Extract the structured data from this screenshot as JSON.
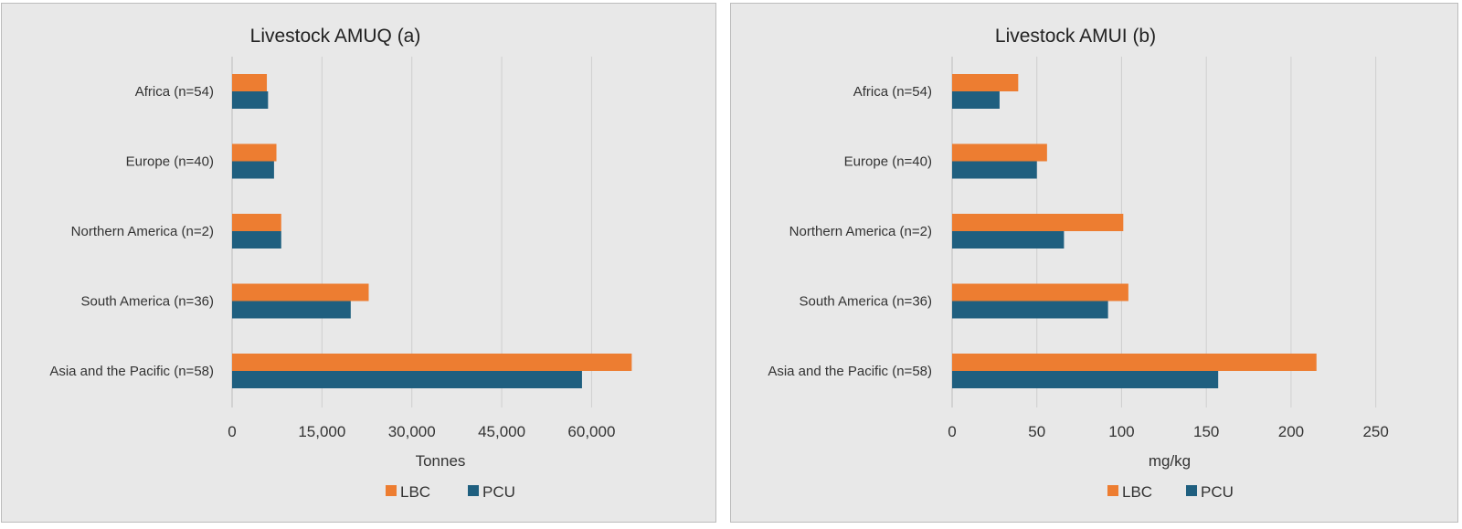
{
  "chart_data": [
    {
      "type": "bar",
      "orientation": "horizontal",
      "title": "Livestock AMUQ (a)",
      "xlabel": "Tonnes",
      "ylabel": "",
      "xlim": [
        0,
        70000
      ],
      "xticks": [
        0,
        15000,
        30000,
        45000,
        60000
      ],
      "xtick_labels": [
        "0",
        "15,000",
        "30,000",
        "45,000",
        "60,000"
      ],
      "categories": [
        "Africa (n=54)",
        "Europe (n=40)",
        "Northern America (n=2)",
        "South America (n=36)",
        "Asia and the Pacific (n=58)"
      ],
      "series": [
        {
          "name": "LBC",
          "color": "#ed7d31",
          "values": [
            5800,
            7400,
            8200,
            22800,
            66700
          ]
        },
        {
          "name": "PCU",
          "color": "#1f5f7f",
          "values": [
            6000,
            7000,
            8200,
            19800,
            58400
          ]
        }
      ],
      "grid": true,
      "legend": "bottom-center"
    },
    {
      "type": "bar",
      "orientation": "horizontal",
      "title": "Livestock AMUI (b)",
      "xlabel": "mg/kg",
      "ylabel": "",
      "xlim": [
        0,
        260
      ],
      "xticks": [
        0,
        50,
        100,
        150,
        200,
        250
      ],
      "xtick_labels": [
        "0",
        "50",
        "100",
        "150",
        "200",
        "250"
      ],
      "categories": [
        "Africa (n=54)",
        "Europe (n=40)",
        "Northern America (n=2)",
        "South America (n=36)",
        "Asia and the Pacific (n=58)"
      ],
      "series": [
        {
          "name": "LBC",
          "color": "#ed7d31",
          "values": [
            39,
            56,
            101,
            104,
            215
          ]
        },
        {
          "name": "PCU",
          "color": "#1f5f7f",
          "values": [
            28,
            50,
            66,
            92,
            157
          ]
        }
      ],
      "grid": true,
      "legend": "bottom-center"
    }
  ]
}
